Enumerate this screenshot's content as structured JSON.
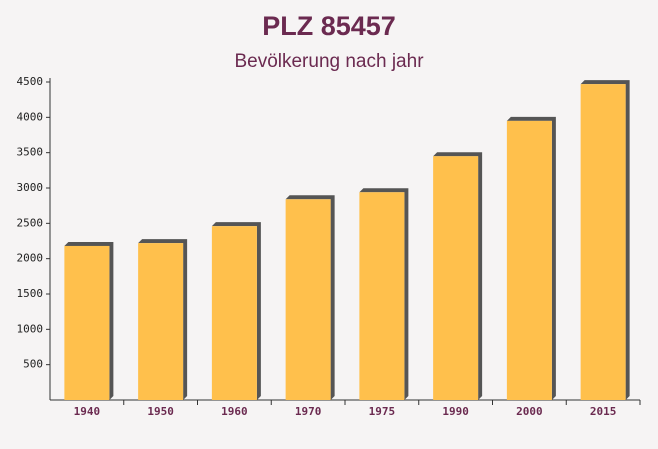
{
  "chart_data": {
    "type": "bar",
    "title": "PLZ 85457",
    "subtitle": "Bevölkerung nach jahr",
    "categories": [
      "1940",
      "1950",
      "1960",
      "1970",
      "1975",
      "1990",
      "2000",
      "2015"
    ],
    "values": [
      2180,
      2220,
      2460,
      2840,
      2940,
      3450,
      3950,
      4470
    ],
    "color": "#ffc04c",
    "ylim": [
      0,
      4500
    ],
    "yticks": [
      500,
      1000,
      1500,
      2000,
      2500,
      3000,
      3500,
      4000,
      4500
    ],
    "grid": false
  }
}
